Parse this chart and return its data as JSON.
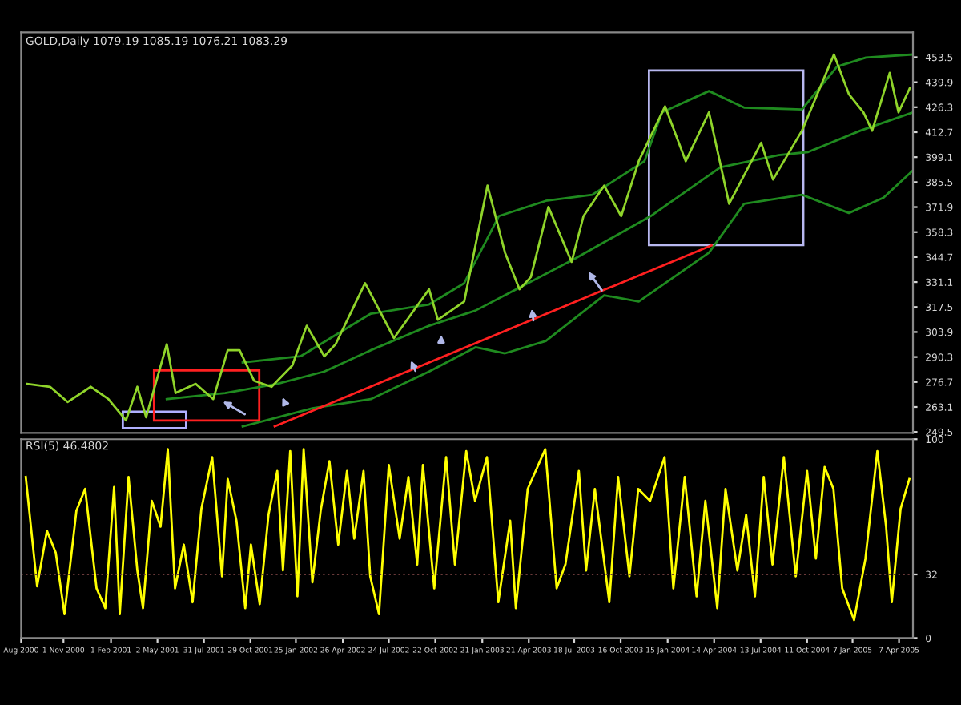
{
  "chart_data": [
    {
      "type": "line",
      "title": "GOLD,Daily 1079.19 1085.19 1076.21 1083.29",
      "xlim": [
        "2000-08-11",
        "2005-05-04"
      ],
      "ylim": [
        249,
        467
      ],
      "yticks": [
        249.5,
        263.1,
        276.7,
        290.3,
        303.9,
        317.5,
        331.1,
        344.7,
        358.3,
        371.9,
        385.5,
        399.1,
        412.7,
        426.3,
        439.9,
        453.5
      ],
      "tick_labels": "y",
      "grid": false,
      "legend": false,
      "line_style": "solid",
      "marker": "none",
      "series": [
        {
          "color": "#1f8a1f",
          "x": [
            "2001-10-14",
            "2002-02-26",
            "2002-06-19",
            "2002-10-10",
            "2003-01-08",
            "2003-03-06",
            "2003-05-24",
            "2003-09-14",
            "2003-11-20",
            "2004-04-04",
            "2004-06-11",
            "2004-10-01",
            "2004-12-31",
            "2005-03-08",
            "2005-05-04"
          ],
          "values": [
            252.5,
            262.4,
            267.4,
            282.4,
            295.6,
            292.3,
            299.0,
            323.9,
            320.5,
            347.1,
            373.7,
            378.6,
            368.7,
            377.0,
            391.9
          ]
        },
        {
          "color": "#1f8a1f",
          "x": [
            "2001-05-20",
            "2001-09-10",
            "2001-12-20",
            "2002-03-21",
            "2002-06-19",
            "2002-10-10",
            "2003-01-08",
            "2003-03-28",
            "2003-07-19",
            "2003-12-13",
            "2004-04-26",
            "2004-08-17",
            "2004-10-13",
            "2005-01-22",
            "2005-05-04"
          ],
          "values": [
            267.4,
            270.7,
            275.7,
            282.4,
            294.0,
            307.3,
            315.6,
            327.2,
            343.8,
            367.0,
            393.6,
            400.2,
            401.9,
            413.5,
            423.5
          ]
        },
        {
          "color": "#1f8a1f",
          "x": [
            "2001-10-14",
            "2002-02-03",
            "2002-06-19",
            "2002-10-10",
            "2002-12-17",
            "2003-02-22",
            "2003-05-24",
            "2003-08-22",
            "2003-12-01",
            "2004-01-04",
            "2004-04-04",
            "2004-06-11",
            "2004-10-01",
            "2004-12-08",
            "2005-02-02",
            "2005-05-04"
          ],
          "values": [
            287.3,
            290.7,
            313.9,
            318.9,
            330.5,
            367.0,
            375.3,
            378.6,
            396.9,
            423.5,
            435.1,
            426.1,
            425.1,
            448.4,
            453.3,
            455.0
          ]
        },
        {
          "color": "#8fd42a",
          "x": [
            "2000-08-22",
            "2000-10-06",
            "2000-11-09",
            "2000-12-24",
            "2001-01-27",
            "2001-03-02",
            "2001-03-24",
            "2001-04-10",
            "2001-05-20",
            "2001-06-06",
            "2001-07-15",
            "2001-08-18",
            "2001-09-15",
            "2001-10-08",
            "2001-11-05",
            "2001-12-09",
            "2002-01-18",
            "2002-02-15",
            "2002-03-21",
            "2002-04-12",
            "2002-06-08",
            "2002-08-03",
            "2002-10-10",
            "2002-10-27",
            "2002-12-17",
            "2003-01-31",
            "2003-03-06",
            "2003-04-03",
            "2003-04-25",
            "2003-05-29",
            "2003-07-13",
            "2003-08-05",
            "2003-09-14",
            "2003-10-17",
            "2003-11-20",
            "2004-01-10",
            "2004-02-19",
            "2004-04-04",
            "2004-05-13",
            "2004-07-14",
            "2004-08-06",
            "2004-10-01",
            "2004-12-02",
            "2004-12-31",
            "2005-01-28",
            "2005-02-14",
            "2005-03-20",
            "2005-04-06",
            "2005-04-28"
          ],
          "values": [
            275.7,
            274.1,
            265.8,
            274.1,
            267.4,
            255.8,
            274.1,
            257.5,
            297.3,
            270.7,
            275.7,
            267.4,
            294.0,
            294.0,
            277.4,
            274.1,
            285.7,
            307.3,
            290.7,
            297.3,
            330.5,
            300.6,
            327.2,
            310.6,
            320.5,
            383.6,
            347.1,
            327.2,
            333.8,
            372.0,
            342.1,
            367.0,
            383.6,
            367.0,
            396.9,
            426.8,
            396.9,
            423.5,
            373.7,
            406.9,
            386.9,
            413.5,
            455.0,
            433.4,
            423.5,
            413.5,
            445.0,
            423.5,
            436.7
          ]
        },
        {
          "color": "#ff2020",
          "x": [
            "2001-12-15",
            "2004-04-09"
          ],
          "values": [
            252.5,
            351.1
          ]
        }
      ]
    },
    {
      "type": "line",
      "title": "RSI(5) 46.4802",
      "xlim": [
        "2000-08-11",
        "2005-05-04"
      ],
      "ylim": [
        0,
        100
      ],
      "yticks": [
        0,
        32,
        100
      ],
      "grid": false,
      "legend": false,
      "marker": "none",
      "xticks": [
        {
          "value": "2000-08-11",
          "label": "Aug 2000"
        },
        {
          "value": "2000-11-01",
          "label": "1 Nov 2000"
        },
        {
          "value": "2001-02-01",
          "label": "1 Feb 2001"
        },
        {
          "value": "2001-05-02",
          "label": "2 May 2001"
        },
        {
          "value": "2001-07-31",
          "label": "31 Jul 2001"
        },
        {
          "value": "2001-10-29",
          "label": "29 Oct 2001"
        },
        {
          "value": "2002-01-25",
          "label": "25 Jan 2002"
        },
        {
          "value": "2002-04-26",
          "label": "26 Apr 2002"
        },
        {
          "value": "2002-07-24",
          "label": "24 Jul 2002"
        },
        {
          "value": "2002-10-22",
          "label": "22 Oct 2002"
        },
        {
          "value": "2003-01-21",
          "label": "21 Jan 2003"
        },
        {
          "value": "2003-04-21",
          "label": "21 Apr 2003"
        },
        {
          "value": "2003-07-18",
          "label": "18 Jul 2003"
        },
        {
          "value": "2003-10-16",
          "label": "16 Oct 2003"
        },
        {
          "value": "2004-01-15",
          "label": "15 Jan 2004"
        },
        {
          "value": "2004-04-14",
          "label": "14 Apr 2004"
        },
        {
          "value": "2004-07-13",
          "label": "13 Jul 2004"
        },
        {
          "value": "2004-10-11",
          "label": "11 Oct 2004"
        },
        {
          "value": "2005-01-07",
          "label": "7 Jan 2005"
        },
        {
          "value": "2005-04-07",
          "label": "7 Apr 2005"
        }
      ],
      "ref_lines": [
        {
          "axis": "y",
          "value": 32,
          "color": "#6a3a3a",
          "line_style": "dotted"
        }
      ],
      "series": [
        {
          "color": "#ffff00",
          "x": [
            "2000-08-20",
            "2000-09-11",
            "2000-09-30",
            "2000-10-17",
            "2000-11-03",
            "2000-11-26",
            "2000-12-13",
            "2001-01-04",
            "2001-01-21",
            "2001-02-07",
            "2001-02-18",
            "2001-03-07",
            "2001-03-24",
            "2001-04-04",
            "2001-04-21",
            "2001-05-08",
            "2001-05-22",
            "2001-06-05",
            "2001-06-22",
            "2001-07-09",
            "2001-07-26",
            "2001-08-16",
            "2001-09-04",
            "2001-09-15",
            "2001-10-02",
            "2001-10-19",
            "2001-10-30",
            "2001-11-16",
            "2001-12-03",
            "2001-12-20",
            "2001-12-31",
            "2002-01-14",
            "2002-01-28",
            "2002-02-09",
            "2002-02-26",
            "2002-03-14",
            "2002-03-31",
            "2002-04-17",
            "2002-05-04",
            "2002-05-18",
            "2002-06-05",
            "2002-06-18",
            "2002-07-05",
            "2002-07-24",
            "2002-08-14",
            "2002-08-31",
            "2002-09-17",
            "2002-09-28",
            "2002-10-20",
            "2002-11-12",
            "2002-11-29",
            "2002-12-21",
            "2003-01-07",
            "2003-01-30",
            "2003-02-21",
            "2003-03-16",
            "2003-03-27",
            "2003-04-19",
            "2003-05-23",
            "2003-06-14",
            "2003-07-01",
            "2003-07-27",
            "2003-08-10",
            "2003-08-27",
            "2003-09-24",
            "2003-10-11",
            "2003-11-02",
            "2003-11-19",
            "2003-12-12",
            "2004-01-09",
            "2004-01-26",
            "2004-02-17",
            "2004-03-11",
            "2004-03-28",
            "2004-04-20",
            "2004-05-06",
            "2004-05-29",
            "2004-06-15",
            "2004-07-02",
            "2004-07-19",
            "2004-08-05",
            "2004-08-27",
            "2004-09-19",
            "2004-10-11",
            "2004-10-28",
            "2004-11-14",
            "2004-12-01",
            "2004-12-18",
            "2005-01-10",
            "2005-02-01",
            "2005-02-24",
            "2005-03-13",
            "2005-03-24",
            "2005-04-10",
            "2005-04-27"
          ],
          "values": [
            81,
            26,
            54,
            43,
            12,
            64,
            75,
            25,
            15,
            76,
            12,
            81,
            34,
            15,
            69,
            56,
            95,
            25,
            47,
            18,
            65,
            91,
            31,
            80,
            59,
            15,
            47,
            17,
            62,
            84,
            34,
            94,
            21,
            95,
            28,
            64,
            89,
            47,
            84,
            50,
            84,
            31,
            12,
            87,
            50,
            81,
            37,
            87,
            25,
            91,
            37,
            94,
            69,
            91,
            18,
            59,
            15,
            75,
            95,
            25,
            37,
            84,
            34,
            75,
            18,
            81,
            31,
            75,
            69,
            91,
            25,
            81,
            21,
            69,
            15,
            75,
            34,
            62,
            21,
            81,
            37,
            91,
            31,
            84,
            40,
            86,
            75,
            25,
            9,
            40,
            94,
            56,
            18,
            65,
            80
          ]
        }
      ]
    }
  ]
}
